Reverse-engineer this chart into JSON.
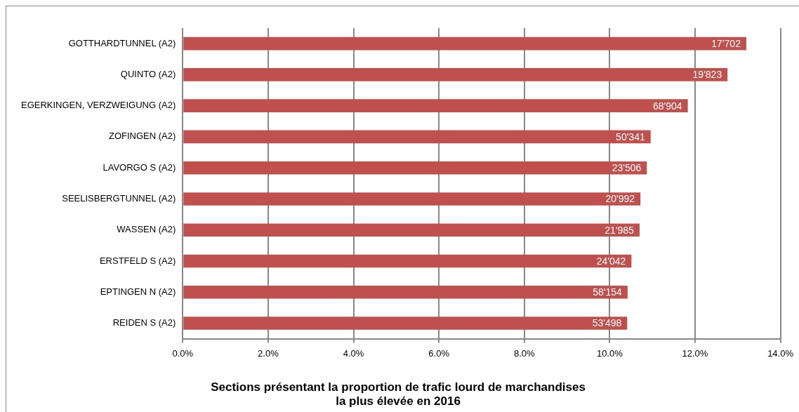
{
  "chart_data": {
    "type": "bar",
    "orientation": "horizontal",
    "title": "Sections présentant la proportion de trafic lourd de marchandises\nla plus élevée en 2016",
    "categories": [
      "GOTTHARDTUNNEL (A2)",
      "QUINTO (A2)",
      "EGERKINGEN, VERZWEIGUNG (A2)",
      "ZOFINGEN (A2)",
      "LAVORGO S (A2)",
      "SEELISBERGTUNNEL (A2)",
      "WASSEN (A2)",
      "ERSTFELD S (A2)",
      "EPTINGEN N (A2)",
      "REIDEN S (A2)"
    ],
    "values": [
      13.2,
      12.76,
      11.83,
      10.96,
      10.87,
      10.72,
      10.7,
      10.51,
      10.42,
      10.41
    ],
    "annotations": [
      {
        "text": "17'702",
        "x": 13.2,
        "y": "GOTTHARDTUNNEL (A2)"
      },
      {
        "text": "19'823",
        "x": 12.76,
        "y": "QUINTO (A2)"
      },
      {
        "text": "68'904",
        "x": 11.83,
        "y": "EGERKINGEN, VERZWEIGUNG (A2)"
      },
      {
        "text": "50'341",
        "x": 10.96,
        "y": "ZOFINGEN (A2)"
      },
      {
        "text": "23'506",
        "x": 10.87,
        "y": "LAVORGO S (A2)"
      },
      {
        "text": "20'992",
        "x": 10.72,
        "y": "SEELISBERGTUNNEL (A2)"
      },
      {
        "text": "21'985",
        "x": 10.7,
        "y": "WASSEN (A2)"
      },
      {
        "text": "24'042",
        "x": 10.51,
        "y": "ERSTFELD S (A2)"
      },
      {
        "text": "58'154",
        "x": 10.42,
        "y": "EPTINGEN N (A2)"
      },
      {
        "text": "53'498",
        "x": 10.41,
        "y": "REIDEN S (A2)"
      }
    ],
    "color": "#c0504d",
    "xlim": [
      0,
      14
    ],
    "xticks": [
      {
        "value": 0,
        "label": "0.0%"
      },
      {
        "value": 2,
        "label": "2.0%"
      },
      {
        "value": 4,
        "label": "4.0%"
      },
      {
        "value": 6,
        "label": "6.0%"
      },
      {
        "value": 8,
        "label": "8.0%"
      },
      {
        "value": 10,
        "label": "10.0%"
      },
      {
        "value": 12,
        "label": "12.0%"
      },
      {
        "value": 14,
        "label": "14.0%"
      }
    ],
    "grid": "x",
    "legend": false
  }
}
